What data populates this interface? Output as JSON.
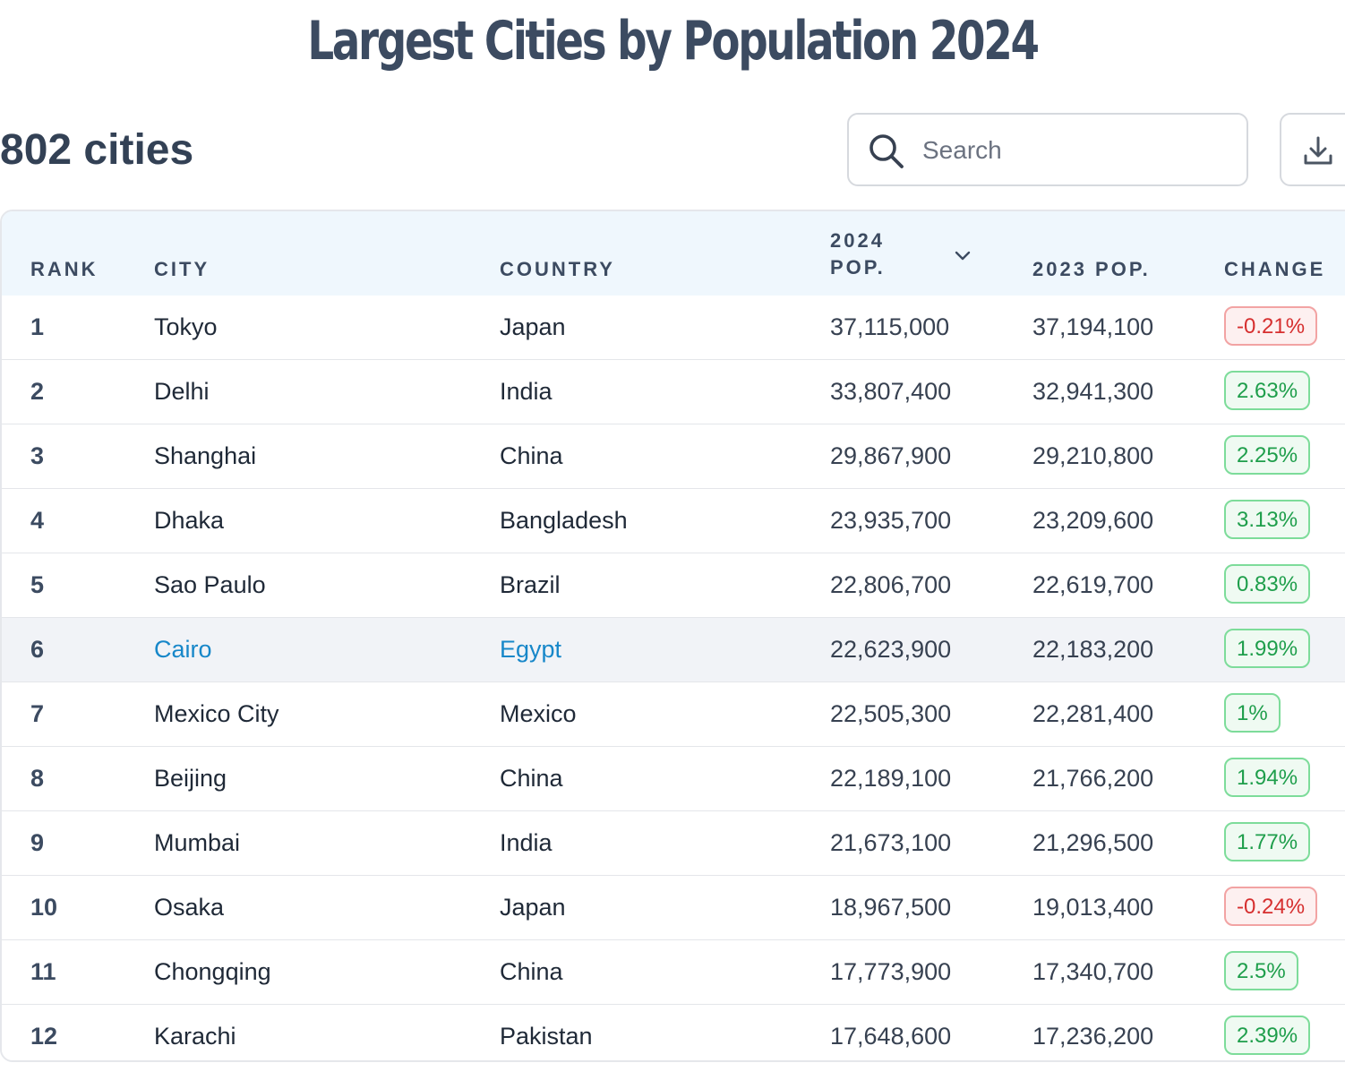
{
  "title": "Largest Cities by Population 2024",
  "summary": {
    "count_label": "802 cities"
  },
  "search": {
    "placeholder": "Search",
    "icon": "search-icon"
  },
  "toolbar": {
    "download_icon": "download-icon"
  },
  "colors": {
    "positive": "#1e9e4b",
    "negative": "#d62f2f",
    "link": "#1787c9",
    "header_bg": "#eff7fd"
  },
  "table": {
    "columns": {
      "rank": "RANK",
      "city": "CITY",
      "country": "COUNTRY",
      "pop_2024": "2024 POP.",
      "pop_2023": "2023 POP.",
      "change": "CHANGE"
    },
    "sorted_by": "2024 POP.",
    "sort_direction": "descending",
    "rows": [
      {
        "rank": "1",
        "city": "Tokyo",
        "country": "Japan",
        "pop_2024": "37,115,000",
        "pop_2023": "37,194,100",
        "change": "-0.21%",
        "trend": "down"
      },
      {
        "rank": "2",
        "city": "Delhi",
        "country": "India",
        "pop_2024": "33,807,400",
        "pop_2023": "32,941,300",
        "change": "2.63%",
        "trend": "up"
      },
      {
        "rank": "3",
        "city": "Shanghai",
        "country": "China",
        "pop_2024": "29,867,900",
        "pop_2023": "29,210,800",
        "change": "2.25%",
        "trend": "up"
      },
      {
        "rank": "4",
        "city": "Dhaka",
        "country": "Bangladesh",
        "pop_2024": "23,935,700",
        "pop_2023": "23,209,600",
        "change": "3.13%",
        "trend": "up"
      },
      {
        "rank": "5",
        "city": "Sao Paulo",
        "country": "Brazil",
        "pop_2024": "22,806,700",
        "pop_2023": "22,619,700",
        "change": "0.83%",
        "trend": "up"
      },
      {
        "rank": "6",
        "city": "Cairo",
        "country": "Egypt",
        "pop_2024": "22,623,900",
        "pop_2023": "22,183,200",
        "change": "1.99%",
        "trend": "up",
        "hovered": true
      },
      {
        "rank": "7",
        "city": "Mexico City",
        "country": "Mexico",
        "pop_2024": "22,505,300",
        "pop_2023": "22,281,400",
        "change": "1%",
        "trend": "up"
      },
      {
        "rank": "8",
        "city": "Beijing",
        "country": "China",
        "pop_2024": "22,189,100",
        "pop_2023": "21,766,200",
        "change": "1.94%",
        "trend": "up"
      },
      {
        "rank": "9",
        "city": "Mumbai",
        "country": "India",
        "pop_2024": "21,673,100",
        "pop_2023": "21,296,500",
        "change": "1.77%",
        "trend": "up"
      },
      {
        "rank": "10",
        "city": "Osaka",
        "country": "Japan",
        "pop_2024": "18,967,500",
        "pop_2023": "19,013,400",
        "change": "-0.24%",
        "trend": "down"
      },
      {
        "rank": "11",
        "city": "Chongqing",
        "country": "China",
        "pop_2024": "17,773,900",
        "pop_2023": "17,340,700",
        "change": "2.5%",
        "trend": "up"
      },
      {
        "rank": "12",
        "city": "Karachi",
        "country": "Pakistan",
        "pop_2024": "17,648,600",
        "pop_2023": "17,236,200",
        "change": "2.39%",
        "trend": "up"
      }
    ]
  }
}
